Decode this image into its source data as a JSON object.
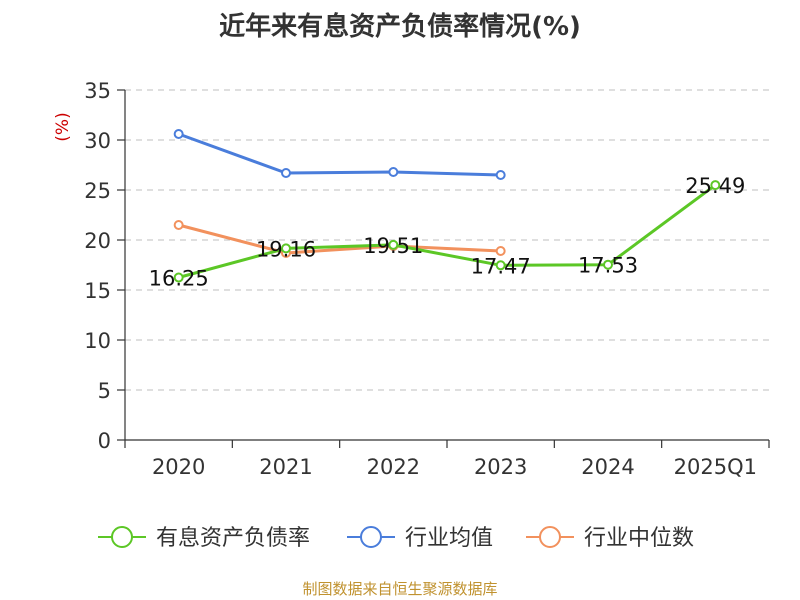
{
  "colors": {
    "background": "#ffffff",
    "axis": "#333333",
    "grid": "#cccccc",
    "text": "#333333",
    "ylabel": "#cc0000",
    "source": "#c0922f"
  },
  "source_note": "制图数据来自恒生聚源数据库",
  "chart_data": {
    "type": "line",
    "title": "近年来有息资产负债率情况(%)",
    "xlabel": "",
    "ylabel": "(%)",
    "ylim": [
      0,
      35
    ],
    "yticks": [
      0,
      5,
      10,
      15,
      20,
      25,
      30,
      35
    ],
    "grid": true,
    "legend_position": "bottom",
    "categories": [
      "2020",
      "2021",
      "2022",
      "2023",
      "2024",
      "2025Q1"
    ],
    "series": [
      {
        "name": "有息资产负债率",
        "color": "#5cc726",
        "values": [
          16.25,
          19.16,
          19.51,
          17.47,
          17.53,
          25.49
        ],
        "data_labels": [
          "16.25",
          "19.16",
          "19.51",
          "17.47",
          "17.53",
          "25.49"
        ]
      },
      {
        "name": "行业均值",
        "color": "#4a7ddb",
        "values": [
          30.6,
          26.7,
          26.8,
          26.5,
          null,
          null
        ]
      },
      {
        "name": "行业中位数",
        "color": "#f2915d",
        "values": [
          21.5,
          18.7,
          19.4,
          18.9,
          null,
          null
        ]
      }
    ]
  }
}
